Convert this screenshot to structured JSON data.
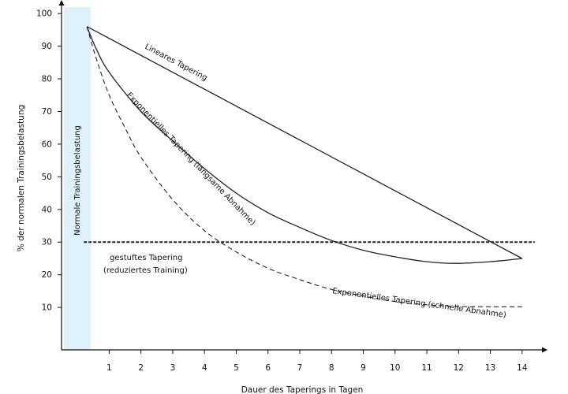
{
  "chart_data": {
    "type": "line",
    "title": "",
    "xlabel": "Dauer des Taperings in Tagen",
    "ylabel": "% der normalen Trainingsbelastung",
    "xlim": [
      -0.5,
      14.6
    ],
    "ylim": [
      -3,
      101
    ],
    "x_ticks": [
      1,
      2,
      3,
      4,
      5,
      6,
      7,
      8,
      9,
      10,
      11,
      12,
      13,
      14
    ],
    "y_ticks": [
      10,
      20,
      30,
      40,
      50,
      60,
      70,
      80,
      90,
      100
    ],
    "grid": false,
    "legend": "none",
    "normal_band": {
      "label": "Normale Trainingsbelastung",
      "x_from": 0,
      "x_to": 0.9,
      "color": "#dff2fb"
    },
    "series": [
      {
        "name": "Lineares Tapering",
        "style": "solid",
        "x": [
          0.3,
          14
        ],
        "y": [
          96,
          25
        ]
      },
      {
        "name": "Exponentielles Tapering (langsame Abnahme)",
        "style": "solid",
        "x": [
          0.3,
          0.6,
          1,
          2,
          3,
          4,
          5,
          6,
          7,
          8,
          9,
          10,
          11,
          11.9,
          13,
          14
        ],
        "y": [
          96,
          89,
          82,
          70,
          61,
          52.5,
          45,
          39,
          34.5,
          30.5,
          27.5,
          25.5,
          24,
          23.5,
          24,
          25
        ]
      },
      {
        "name": "Exponentielles Tapering (schnelle Abnahme)",
        "style": "dashed",
        "x": [
          0.3,
          0.6,
          1,
          1.5,
          2,
          3,
          4,
          5,
          6,
          7,
          8,
          9,
          10,
          11,
          12,
          13,
          14
        ],
        "y": [
          96,
          86,
          75,
          65,
          56,
          43,
          33.5,
          27,
          22,
          18.5,
          15.5,
          13.5,
          11.8,
          10.8,
          10.3,
          10.2,
          10.2
        ]
      },
      {
        "name": "gestuftes Tapering",
        "style": "dotted",
        "x": [
          0.2,
          14.4
        ],
        "y": [
          30,
          30
        ]
      }
    ],
    "annotations": {
      "linear": "Lineares Tapering",
      "exp_slow": "Exponentielles Tapering (langsame Abnahme)",
      "exp_fast": "Exponentielles Tapering (schnelle Abnahme)",
      "step_line1": "gestuftes Tapering",
      "step_line2": "(reduziertes Training)"
    }
  }
}
